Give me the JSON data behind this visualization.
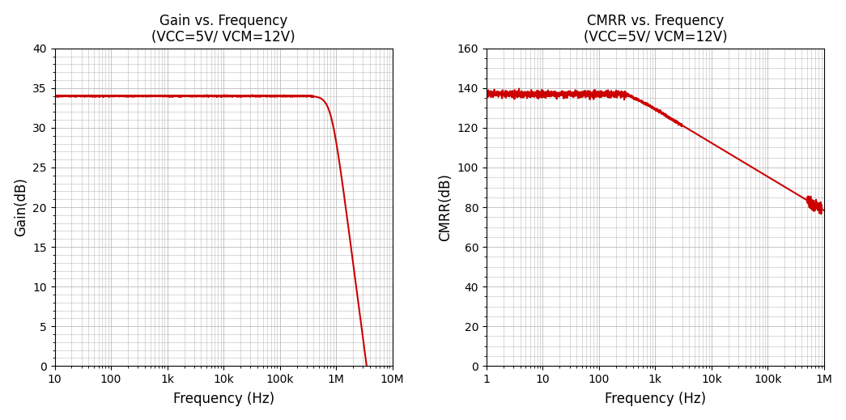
{
  "chart1": {
    "title": "Gain vs. Frequency",
    "subtitle": "(VCC=5V/ VCM=12V)",
    "xlabel": "Frequency (Hz)",
    "ylabel": "Gain(dB)",
    "xlim": [
      10,
      10000000.0
    ],
    "ylim": [
      0,
      40
    ],
    "yticks": [
      0,
      5,
      10,
      15,
      20,
      25,
      30,
      35,
      40
    ],
    "xticks": [
      10,
      100,
      1000,
      10000,
      100000,
      1000000,
      10000000
    ],
    "xticklabels": [
      "10",
      "100",
      "1k",
      "10k",
      "100k",
      "1M",
      "10M"
    ],
    "line_color": "#cc0000",
    "line_width": 1.5
  },
  "chart2": {
    "title": "CMRR vs. Frequency",
    "subtitle": "(VCC=5V/ VCM=12V)",
    "xlabel": "Frequency (Hz)",
    "ylabel": "CMRR(dB)",
    "xlim": [
      1,
      1000000.0
    ],
    "ylim": [
      0,
      160
    ],
    "yticks": [
      0,
      20,
      40,
      60,
      80,
      100,
      120,
      140,
      160
    ],
    "xticks": [
      1,
      10,
      100,
      1000,
      10000,
      100000,
      1000000
    ],
    "xticklabels": [
      "1",
      "10",
      "100",
      "1k",
      "10k",
      "100k",
      "1M"
    ],
    "line_color": "#cc0000",
    "line_width": 1.5
  },
  "background_color": "#ffffff",
  "grid_color": "#bbbbbb",
  "title_fontsize": 12,
  "label_fontsize": 12,
  "tick_fontsize": 10,
  "figsize": [
    10.45,
    5.19
  ],
  "dpi": 100
}
